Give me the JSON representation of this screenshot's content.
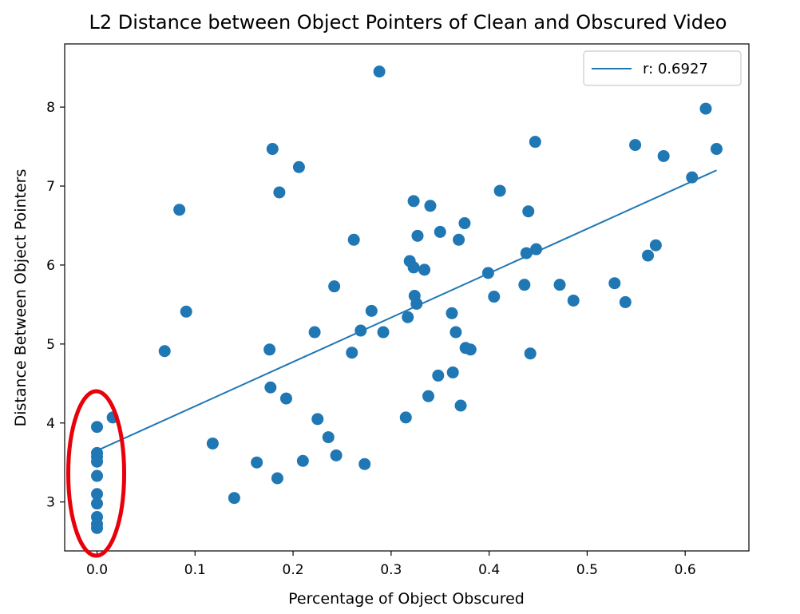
{
  "chart_data": {
    "type": "scatter",
    "title": "L2 Distance between Object Pointers of Clean and Obscured Video",
    "xlabel": "Percentage of Object Obscured",
    "ylabel": "Distance Between Object Pointers",
    "xlim": [
      -0.033,
      0.665
    ],
    "ylim": [
      2.38,
      8.8
    ],
    "x_ticks": [
      0.0,
      0.1,
      0.2,
      0.3,
      0.4,
      0.5,
      0.6
    ],
    "x_tick_labels": [
      "0.0",
      "0.1",
      "0.2",
      "0.3",
      "0.4",
      "0.5",
      "0.6"
    ],
    "y_ticks": [
      3,
      4,
      5,
      6,
      7,
      8
    ],
    "y_tick_labels": [
      "3",
      "4",
      "5",
      "6",
      "7",
      "8"
    ],
    "grid": false,
    "legend": {
      "position": "top-right",
      "entries": [
        "r: 0.6927"
      ]
    },
    "series_color": "#1f77b4",
    "highlight_color": "#e8000b",
    "points": [
      [
        0.0,
        3.95
      ],
      [
        0.0,
        3.62
      ],
      [
        0.0,
        3.57
      ],
      [
        0.0,
        3.51
      ],
      [
        0.0,
        3.33
      ],
      [
        0.0,
        3.1
      ],
      [
        0.0,
        2.98
      ],
      [
        0.0,
        2.81
      ],
      [
        0.0,
        2.72
      ],
      [
        0.0,
        2.67
      ],
      [
        0.016,
        4.07
      ],
      [
        0.069,
        4.91
      ],
      [
        0.084,
        6.7
      ],
      [
        0.091,
        5.41
      ],
      [
        0.118,
        3.74
      ],
      [
        0.14,
        3.05
      ],
      [
        0.163,
        3.5
      ],
      [
        0.176,
        4.93
      ],
      [
        0.177,
        4.45
      ],
      [
        0.179,
        7.47
      ],
      [
        0.184,
        3.3
      ],
      [
        0.186,
        6.92
      ],
      [
        0.193,
        4.31
      ],
      [
        0.206,
        7.24
      ],
      [
        0.21,
        3.52
      ],
      [
        0.222,
        5.15
      ],
      [
        0.225,
        4.05
      ],
      [
        0.236,
        3.82
      ],
      [
        0.242,
        5.73
      ],
      [
        0.244,
        3.59
      ],
      [
        0.26,
        4.89
      ],
      [
        0.262,
        6.32
      ],
      [
        0.269,
        5.17
      ],
      [
        0.273,
        3.48
      ],
      [
        0.28,
        5.42
      ],
      [
        0.288,
        8.45
      ],
      [
        0.292,
        5.15
      ],
      [
        0.315,
        4.07
      ],
      [
        0.317,
        5.34
      ],
      [
        0.319,
        6.05
      ],
      [
        0.323,
        6.81
      ],
      [
        0.323,
        5.97
      ],
      [
        0.324,
        5.61
      ],
      [
        0.326,
        5.51
      ],
      [
        0.327,
        6.37
      ],
      [
        0.334,
        5.94
      ],
      [
        0.338,
        4.34
      ],
      [
        0.34,
        6.75
      ],
      [
        0.348,
        4.6
      ],
      [
        0.35,
        6.42
      ],
      [
        0.362,
        5.39
      ],
      [
        0.363,
        4.64
      ],
      [
        0.366,
        5.15
      ],
      [
        0.369,
        6.32
      ],
      [
        0.371,
        4.22
      ],
      [
        0.375,
        6.53
      ],
      [
        0.376,
        4.95
      ],
      [
        0.381,
        4.93
      ],
      [
        0.399,
        5.9
      ],
      [
        0.405,
        5.6
      ],
      [
        0.411,
        6.94
      ],
      [
        0.436,
        5.75
      ],
      [
        0.438,
        6.15
      ],
      [
        0.44,
        6.68
      ],
      [
        0.442,
        4.88
      ],
      [
        0.447,
        7.56
      ],
      [
        0.448,
        6.2
      ],
      [
        0.472,
        5.75
      ],
      [
        0.486,
        5.55
      ],
      [
        0.528,
        5.77
      ],
      [
        0.539,
        5.53
      ],
      [
        0.549,
        7.52
      ],
      [
        0.562,
        6.12
      ],
      [
        0.57,
        6.25
      ],
      [
        0.578,
        7.38
      ],
      [
        0.607,
        7.11
      ],
      [
        0.621,
        7.98
      ],
      [
        0.632,
        7.47
      ]
    ],
    "fit_line": {
      "x": [
        0.0,
        0.632
      ],
      "y": [
        3.65,
        7.2
      ]
    }
  }
}
